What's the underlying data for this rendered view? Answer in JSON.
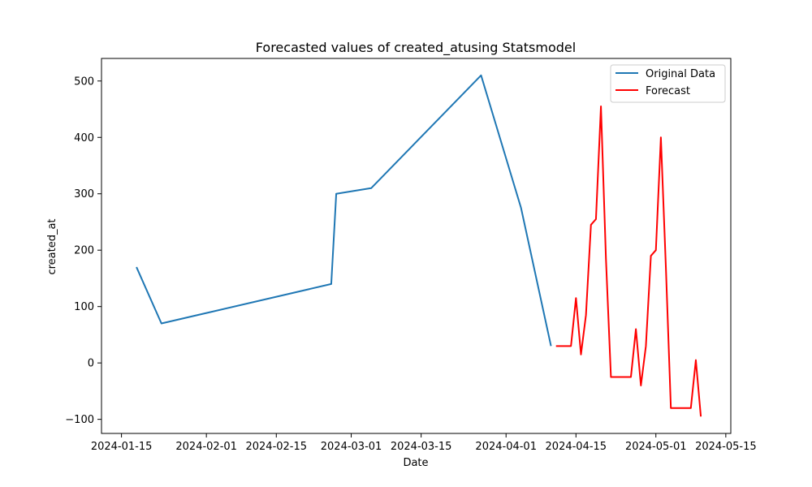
{
  "chart_data": {
    "type": "line",
    "title": "Forecasted values of created_atusing Statsmodel",
    "xlabel": "Date",
    "ylabel": "created_at",
    "x_axis_type": "date",
    "xlim": [
      "2024-01-11",
      "2024-05-16"
    ],
    "ylim": [
      -125,
      540
    ],
    "x_ticks": [
      "2024-01-15",
      "2024-02-01",
      "2024-02-15",
      "2024-03-01",
      "2024-03-15",
      "2024-04-01",
      "2024-04-15",
      "2024-05-01",
      "2024-05-15"
    ],
    "y_ticks": [
      -100,
      0,
      100,
      200,
      300,
      400,
      500
    ],
    "grid": false,
    "legend_position": "top-right",
    "series": [
      {
        "name": "Original Data",
        "color": "#1f77b4",
        "points": [
          {
            "x": "2024-01-18",
            "y": 170
          },
          {
            "x": "2024-01-23",
            "y": 70
          },
          {
            "x": "2024-02-26",
            "y": 140
          },
          {
            "x": "2024-02-27",
            "y": 300
          },
          {
            "x": "2024-03-05",
            "y": 310
          },
          {
            "x": "2024-03-27",
            "y": 510
          },
          {
            "x": "2024-04-04",
            "y": 275
          },
          {
            "x": "2024-04-10",
            "y": 30
          }
        ]
      },
      {
        "name": "Forecast",
        "color": "#ff0000",
        "points": [
          {
            "x": "2024-04-11",
            "y": 30
          },
          {
            "x": "2024-04-12",
            "y": 30
          },
          {
            "x": "2024-04-13",
            "y": 30
          },
          {
            "x": "2024-04-14",
            "y": 30
          },
          {
            "x": "2024-04-15",
            "y": 115
          },
          {
            "x": "2024-04-16",
            "y": 15
          },
          {
            "x": "2024-04-17",
            "y": 85
          },
          {
            "x": "2024-04-18",
            "y": 245
          },
          {
            "x": "2024-04-19",
            "y": 255
          },
          {
            "x": "2024-04-20",
            "y": 455
          },
          {
            "x": "2024-04-21",
            "y": 185
          },
          {
            "x": "2024-04-22",
            "y": -25
          },
          {
            "x": "2024-04-23",
            "y": -25
          },
          {
            "x": "2024-04-24",
            "y": -25
          },
          {
            "x": "2024-04-25",
            "y": -25
          },
          {
            "x": "2024-04-26",
            "y": -25
          },
          {
            "x": "2024-04-27",
            "y": 60
          },
          {
            "x": "2024-04-28",
            "y": -40
          },
          {
            "x": "2024-04-29",
            "y": 30
          },
          {
            "x": "2024-04-30",
            "y": 190
          },
          {
            "x": "2024-05-01",
            "y": 200
          },
          {
            "x": "2024-05-02",
            "y": 400
          },
          {
            "x": "2024-05-03",
            "y": 170
          },
          {
            "x": "2024-05-04",
            "y": -80
          },
          {
            "x": "2024-05-05",
            "y": -80
          },
          {
            "x": "2024-05-06",
            "y": -80
          },
          {
            "x": "2024-05-07",
            "y": -80
          },
          {
            "x": "2024-05-08",
            "y": -80
          },
          {
            "x": "2024-05-09",
            "y": 5
          },
          {
            "x": "2024-05-10",
            "y": -95
          }
        ]
      }
    ]
  }
}
